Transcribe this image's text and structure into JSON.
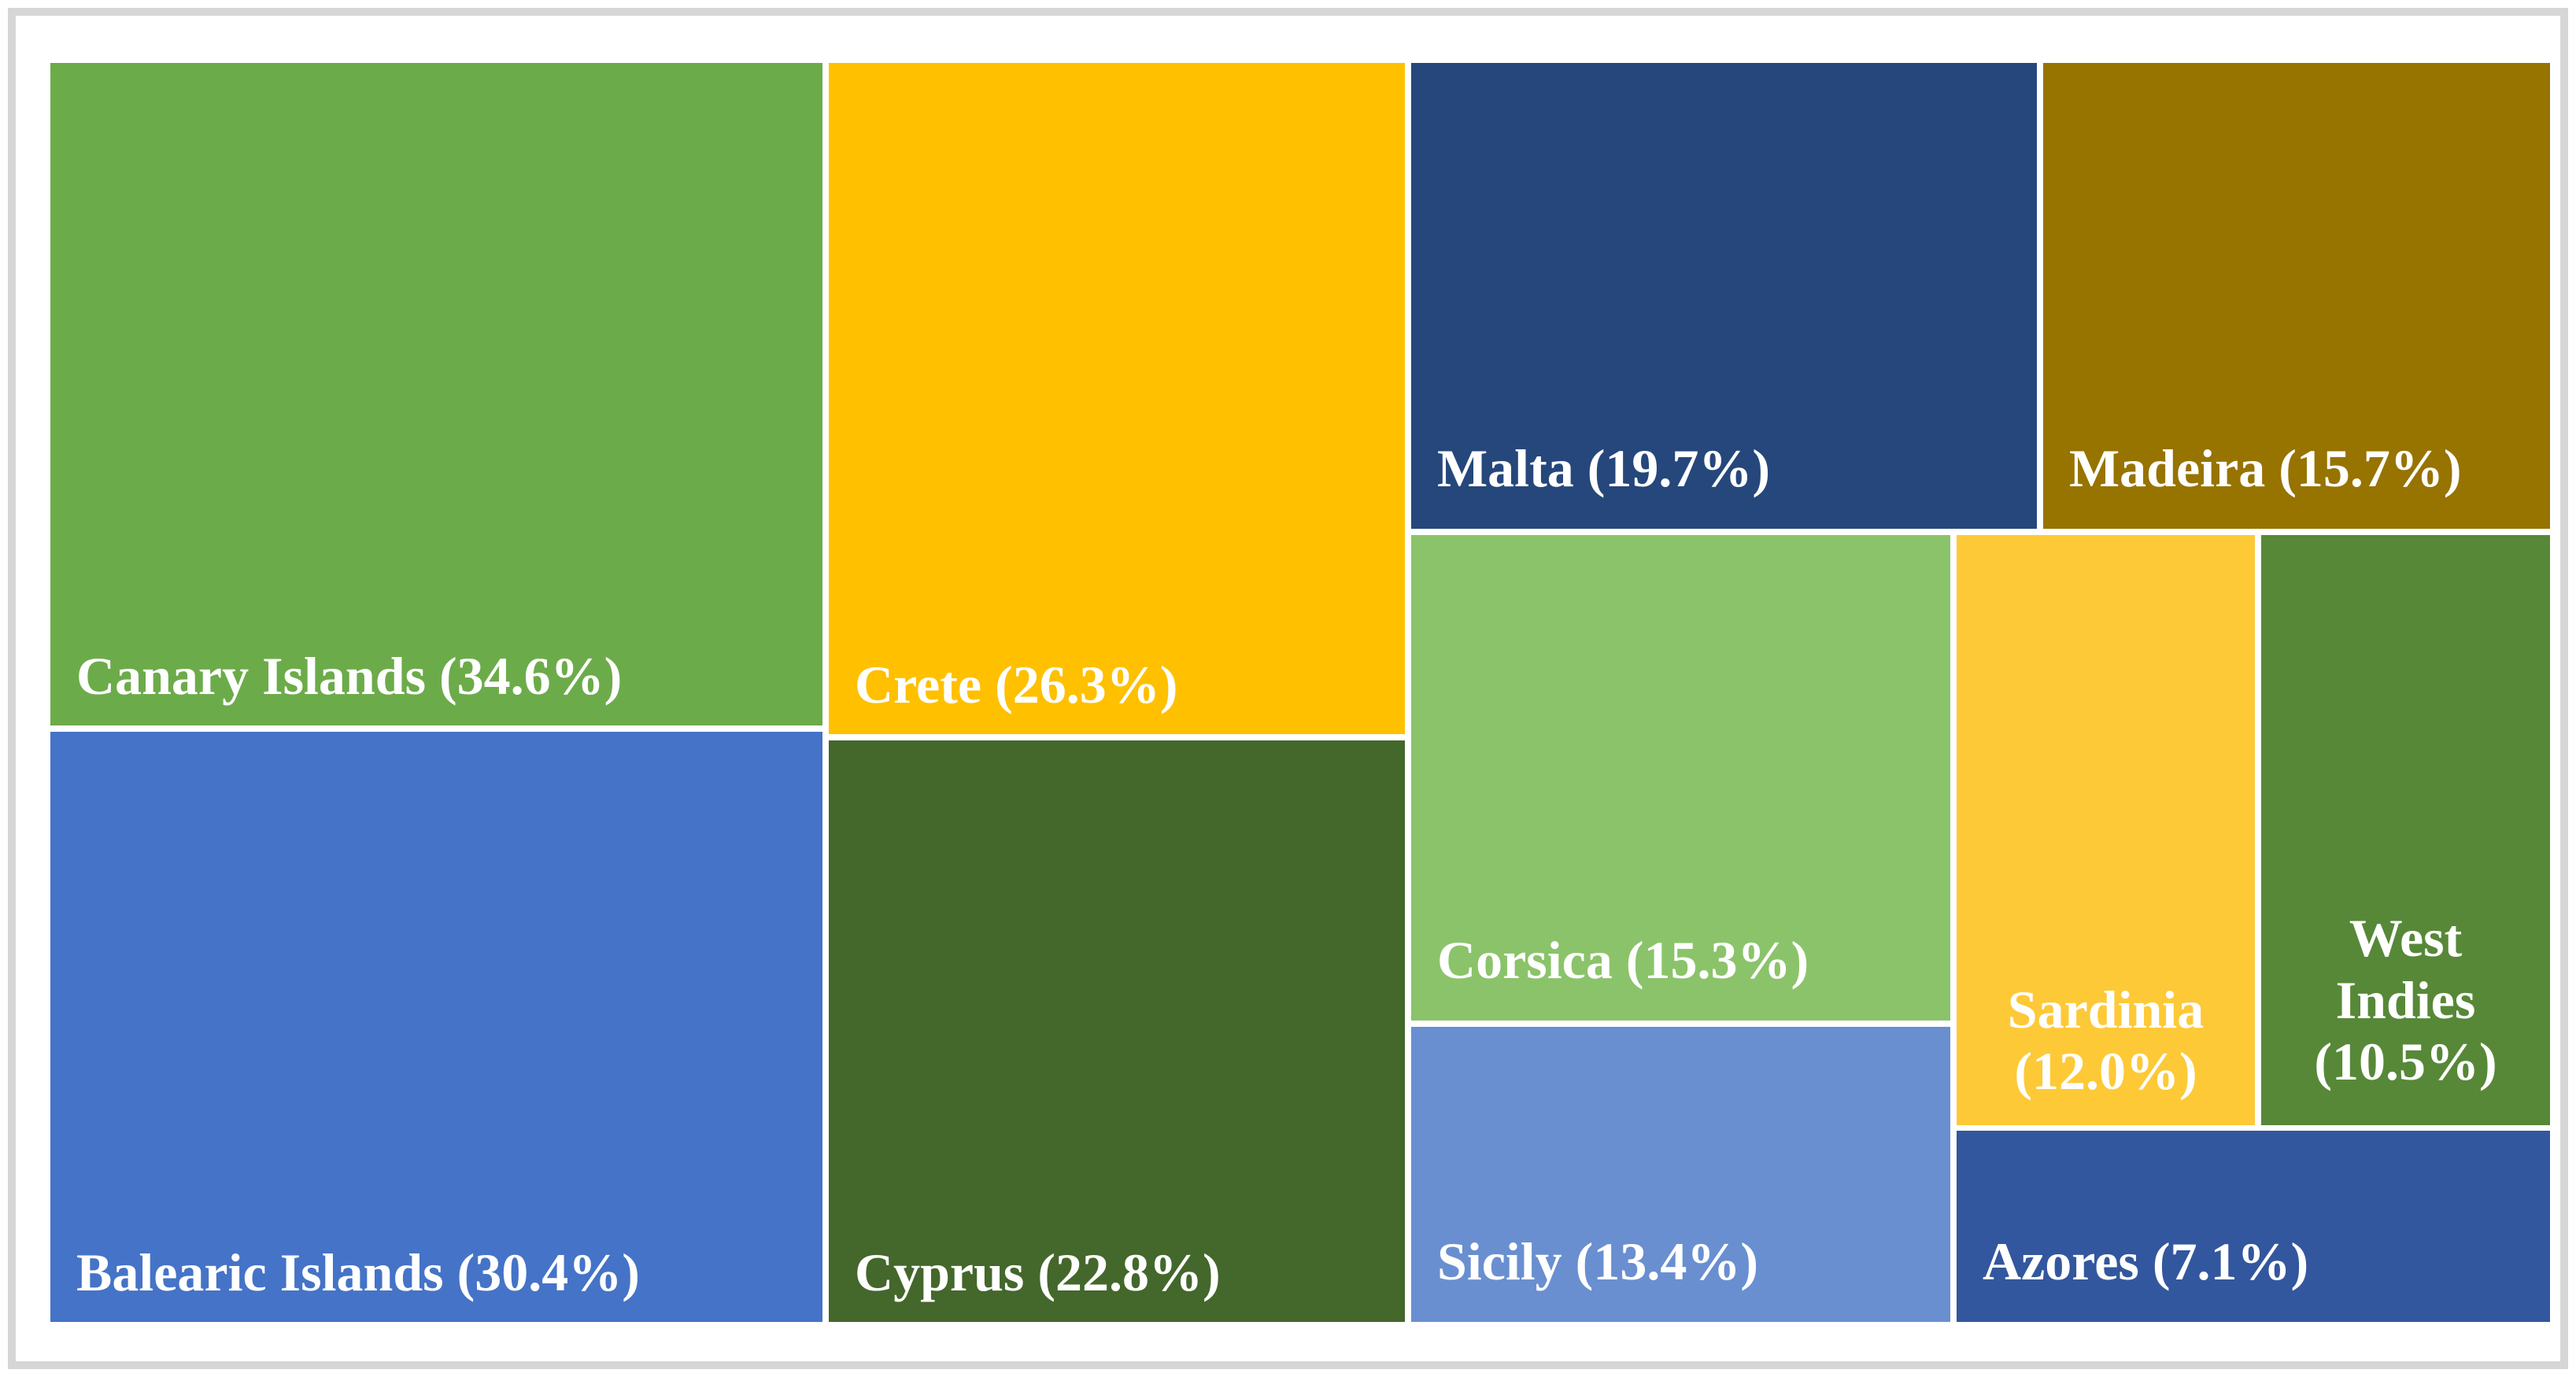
{
  "chart_data": {
    "type": "treemap",
    "title": "",
    "unit": "%",
    "legend": "none",
    "label_format": "Name (value%)",
    "points": [
      {
        "label": "Canary Islands",
        "value": 34.6,
        "color": "#6CAB4A"
      },
      {
        "label": "Balearic Islands",
        "value": 30.4,
        "color": "#4573C7"
      },
      {
        "label": "Crete",
        "value": 26.3,
        "color": "#FFC000"
      },
      {
        "label": "Cyprus",
        "value": 22.8,
        "color": "#44672B"
      },
      {
        "label": "Malta",
        "value": 19.7,
        "color": "#26477B"
      },
      {
        "label": "Madeira",
        "value": 15.7,
        "color": "#977300"
      },
      {
        "label": "Corsica",
        "value": 15.3,
        "color": "#8BC36A"
      },
      {
        "label": "Sicily",
        "value": 13.4,
        "color": "#698FD0"
      },
      {
        "label": "Sardinia",
        "value": 12.0,
        "color": "#FDC937"
      },
      {
        "label": "West Indies",
        "value": 10.5,
        "color": "#578838"
      },
      {
        "label": "Azores",
        "value": 7.1,
        "color": "#33579E"
      }
    ]
  },
  "tiles": [
    {
      "name": "canary-islands",
      "label": "Canary Islands (34.6%)",
      "color": "#6CAB4A"
    },
    {
      "name": "balearic-islands",
      "label": "Balearic Islands (30.4%)",
      "color": "#4573C7"
    },
    {
      "name": "crete",
      "label": "Crete (26.3%)",
      "color": "#FFC000"
    },
    {
      "name": "cyprus",
      "label": "Cyprus (22.8%)",
      "color": "#44672B"
    },
    {
      "name": "malta",
      "label": "Malta (19.7%)",
      "color": "#26477B"
    },
    {
      "name": "madeira",
      "label": "Madeira (15.7%)",
      "color": "#977300"
    },
    {
      "name": "corsica",
      "label": "Corsica (15.3%)",
      "color": "#8BC36A"
    },
    {
      "name": "sicily",
      "label": "Sicily (13.4%)",
      "color": "#698FD0"
    },
    {
      "name": "sardinia",
      "label_lines": [
        "Sardinia",
        "(12.0%)"
      ],
      "color": "#FDC937"
    },
    {
      "name": "west-indies",
      "label_lines": [
        "West",
        "Indies",
        "(10.5%)"
      ],
      "color": "#578838"
    },
    {
      "name": "azores",
      "label": "Azores (7.1%)",
      "color": "#33579E"
    }
  ],
  "style": {
    "text_color": "#FFFFFF",
    "frame_border_color": "#D6D6D6",
    "background_color": "#FFFFFF"
  }
}
